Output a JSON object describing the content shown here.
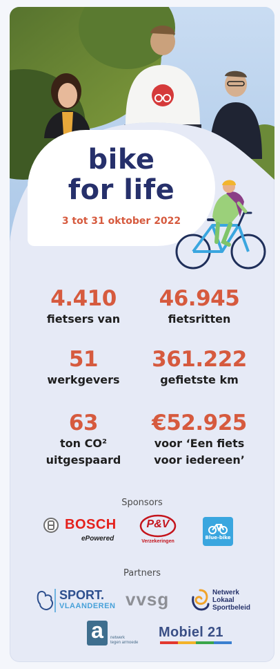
{
  "header": {
    "title_line1": "bike",
    "title_line2": "for life",
    "dates": "3 tot 31 oktober 2022"
  },
  "stats": [
    {
      "value": "4.410",
      "label1": "fietsers van",
      "label2": ""
    },
    {
      "value": "46.945",
      "label1": "fietsritten",
      "label2": ""
    },
    {
      "value": "51",
      "label1": "werkgevers",
      "label2": ""
    },
    {
      "value": "361.222",
      "label1": "gefietste km",
      "label2": ""
    },
    {
      "value": "63",
      "label1": "ton CO²",
      "label2": "uitgespaard"
    },
    {
      "value": "€52.925",
      "label1": "voor ‘Een fiets",
      "label2": "voor iedereen’"
    }
  ],
  "sponsors": {
    "heading": "Sponsors",
    "bosch": {
      "name": "BOSCH",
      "tagline": "ePowered"
    },
    "pv": {
      "name": "P&V",
      "tagline": "Verzekeringen"
    },
    "bluebike": {
      "name": "Blue-bike"
    }
  },
  "partners": {
    "heading": "Partners",
    "sport": {
      "line1": "SPORT.",
      "line2": "VLAANDEREN"
    },
    "vvsg": {
      "name": "vvsg"
    },
    "netwerk": {
      "line1": "Netwerk",
      "line2": "Lokaal",
      "line3": "Sportbeleid"
    },
    "armoede": {
      "letter": "a",
      "line1": "netwerk",
      "line2": "tegen armoede"
    },
    "mobiel": {
      "name": "Mobiel 21"
    }
  },
  "colors": {
    "accent": "#d65a3e",
    "title": "#26306b",
    "card": "#e6eaf6"
  }
}
